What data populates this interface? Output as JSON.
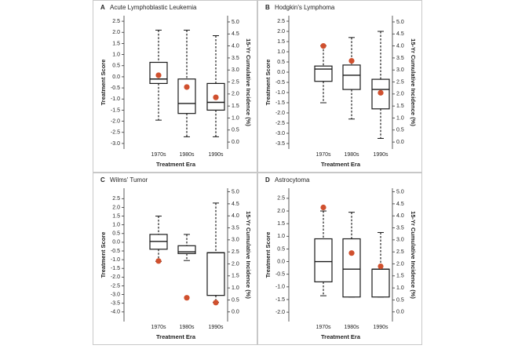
{
  "chart_data": [
    {
      "type": "box",
      "panel_label": "A",
      "title": "Acute Lymphoblastic Leukemia",
      "xlabel": "Treatment Era",
      "ylabel": "Treatment Score",
      "y2label": "15-Yr Cumulative Incidence (%)",
      "categories": [
        "1970s",
        "1980s",
        "1990s"
      ],
      "boxes": [
        {
          "whislo": -1.95,
          "q1": -0.3,
          "med": -0.1,
          "q3": 0.65,
          "whishi": 2.1
        },
        {
          "whislo": -2.7,
          "q1": -1.65,
          "med": -1.2,
          "q3": -0.1,
          "whishi": 2.1
        },
        {
          "whislo": -2.7,
          "q1": -1.5,
          "med": -1.15,
          "q3": -0.3,
          "whishi": 1.85
        }
      ],
      "points": {
        "values": [
          2.78,
          2.29,
          1.86
        ],
        "axis": "y2",
        "color": "#d0502e"
      },
      "box_color": "#1a1a1a",
      "ylim": [
        -3.25,
        2.75
      ],
      "yticks": [
        2.5,
        {
          "value": 2,
          "label": "2.0"
        },
        1.5,
        {
          "value": 1,
          "label": "1.0"
        },
        0.5,
        {
          "value": 0,
          "label": "0.0"
        },
        -0.5,
        {
          "value": -1,
          "label": "-1.0"
        },
        -1.5,
        {
          "value": -2,
          "label": "-2.0"
        },
        -2.5,
        {
          "value": -3,
          "label": "-3.0"
        }
      ],
      "y2lim": [
        -0.29,
        5.26
      ],
      "y2ticks": [
        {
          "value": 5,
          "label": "5.0"
        },
        4.5,
        {
          "value": 4,
          "label": "4.0"
        },
        3.5,
        {
          "value": 3,
          "label": "3.0"
        },
        2.5,
        {
          "value": 2,
          "label": "2.0"
        },
        1.5,
        {
          "value": 1,
          "label": "1.0"
        },
        0.5,
        {
          "value": 0,
          "label": "0.0"
        }
      ]
    },
    {
      "type": "box",
      "panel_label": "B",
      "title": "Hodgkin's Lymphoma",
      "xlabel": "Treatment Era",
      "ylabel": "Treatment Score",
      "y2label": "15-Yr Cumulative Incidence (%)",
      "categories": [
        "1970s",
        "1980s",
        "1990s"
      ],
      "boxes": [
        {
          "whislo": -1.5,
          "q1": -0.45,
          "med": 0.15,
          "q3": 0.3,
          "whishi": 1.3
        },
        {
          "whislo": -2.3,
          "q1": -0.85,
          "med": -0.15,
          "q3": 0.35,
          "whishi": 1.7
        },
        {
          "whislo": -3.25,
          "q1": -1.8,
          "med": -0.85,
          "q3": -0.35,
          "whishi": 2.0
        }
      ],
      "points": {
        "values": [
          4.0,
          3.38,
          2.05
        ],
        "axis": "y2",
        "color": "#d0502e"
      },
      "box_color": "#1a1a1a",
      "ylim": [
        -3.77,
        2.77
      ],
      "yticks": [
        2.5,
        {
          "value": 2,
          "label": "2.0"
        },
        1.5,
        {
          "value": 1,
          "label": "1.0"
        },
        0.5,
        {
          "value": 0,
          "label": "0.0"
        },
        -0.5,
        {
          "value": -1,
          "label": "-1.0"
        },
        -1.5,
        {
          "value": -2,
          "label": "-2.0"
        },
        -2.5,
        {
          "value": -3,
          "label": "-3.0"
        },
        -3.5
      ],
      "y2lim": [
        -0.29,
        5.26
      ],
      "y2ticks": [
        {
          "value": 5,
          "label": "5.0"
        },
        4.5,
        {
          "value": 4,
          "label": "4.0"
        },
        3.5,
        {
          "value": 3,
          "label": "3.0"
        },
        2.5,
        {
          "value": 2,
          "label": "2.0"
        },
        1.5,
        {
          "value": 1,
          "label": "1.0"
        },
        0.5,
        {
          "value": 0,
          "label": "0.0"
        }
      ]
    },
    {
      "type": "box",
      "panel_label": "C",
      "title": "Wilms' Tumor",
      "xlabel": "Treatment Era",
      "ylabel": "Treatment Score",
      "y2label": "15-Yr Cumulative Incidence (%)",
      "categories": [
        "1970s",
        "1980s",
        "1990s"
      ],
      "boxes": [
        {
          "whislo": -1.1,
          "q1": -0.4,
          "med": 0.05,
          "q3": 0.45,
          "whishi": 1.5
        },
        {
          "whislo": -1.05,
          "q1": -0.65,
          "med": -0.55,
          "q3": -0.2,
          "whishi": 0.45
        },
        {
          "whislo": -3.45,
          "q1": -3.05,
          "med": -0.6,
          "q3": -0.6,
          "whishi": 2.25
        }
      ],
      "points": {
        "values": [
          2.12,
          0.59,
          0.39
        ],
        "axis": "y2",
        "color": "#d0502e"
      },
      "box_color": "#1a1a1a",
      "ylim": [
        -4.55,
        3.1
      ],
      "yticks": [
        2.5,
        {
          "value": 2,
          "label": "2.0"
        },
        1.5,
        {
          "value": 1,
          "label": "1.0"
        },
        0.5,
        {
          "value": 0,
          "label": "0.0"
        },
        -0.5,
        {
          "value": -1,
          "label": "-1.0"
        },
        -1.5,
        {
          "value": -2,
          "label": "-2.0"
        },
        -2.5,
        {
          "value": -3,
          "label": "-3.0"
        },
        -3.5,
        {
          "value": -4,
          "label": "-4.0"
        }
      ],
      "y2lim": [
        -0.4,
        5.15
      ],
      "y2ticks": [
        {
          "value": 5,
          "label": "5.0"
        },
        4.5,
        {
          "value": 4,
          "label": "4.0"
        },
        3.5,
        {
          "value": 3,
          "label": "3.0"
        },
        2.5,
        {
          "value": 2,
          "label": "2.0"
        },
        1.5,
        {
          "value": 1,
          "label": "1.0"
        },
        0.5,
        {
          "value": 0,
          "label": "0.0"
        }
      ]
    },
    {
      "type": "box",
      "panel_label": "D",
      "title": "Astrocytoma",
      "xlabel": "Treatment Era",
      "ylabel": "Treatment Score",
      "y2label": "15-Yr Cumulative Incidence (%)",
      "categories": [
        "1970s",
        "1980s",
        "1990s"
      ],
      "boxes": [
        {
          "whislo": -1.35,
          "q1": -0.8,
          "med": 0.0,
          "q3": 0.9,
          "whishi": 2.0
        },
        {
          "whislo": -1.4,
          "q1": -1.4,
          "med": -0.3,
          "q3": 0.9,
          "whishi": 1.95
        },
        {
          "whislo": -1.4,
          "q1": -1.4,
          "med": -0.3,
          "q3": -0.3,
          "whishi": 1.15
        }
      ],
      "points": {
        "values": [
          4.35,
          2.45,
          1.9
        ],
        "axis": "y2",
        "color": "#d0502e"
      },
      "box_color": "#1a1a1a",
      "ylim": [
        -2.37,
        2.9
      ],
      "yticks": [
        2.5,
        {
          "value": 2,
          "label": "2.0"
        },
        1.5,
        {
          "value": 1,
          "label": "1.0"
        },
        0.5,
        {
          "value": 0,
          "label": "0.0"
        },
        -0.5,
        {
          "value": -1,
          "label": "-1.0"
        },
        -1.5,
        {
          "value": -2,
          "label": "-2.0"
        }
      ],
      "y2lim": [
        -0.4,
        5.15
      ],
      "y2ticks": [
        {
          "value": 5,
          "label": "5.0"
        },
        4.5,
        {
          "value": 4,
          "label": "4.0"
        },
        3.5,
        {
          "value": 3,
          "label": "3.0"
        },
        2.5,
        {
          "value": 2,
          "label": "2.0"
        },
        1.5,
        {
          "value": 1,
          "label": "1.0"
        },
        0.5,
        {
          "value": 0,
          "label": "0.0"
        }
      ]
    }
  ]
}
